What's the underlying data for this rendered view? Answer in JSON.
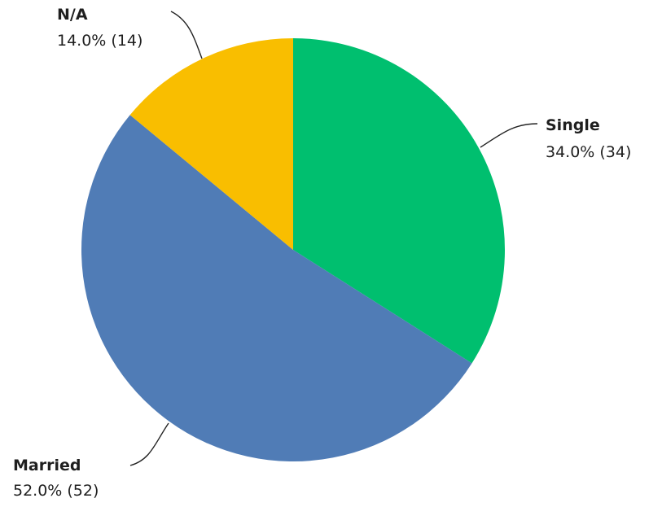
{
  "chart_data": {
    "type": "pie",
    "slices": [
      {
        "label": "Single",
        "percent_text": "34.0% (34)",
        "percent": 34.0,
        "count": 34,
        "color": "#00bf6f"
      },
      {
        "label": "Married",
        "percent_text": "52.0% (52)",
        "percent": 52.0,
        "count": 52,
        "color": "#507cb6"
      },
      {
        "label": "N/A",
        "percent_text": "14.0% (14)",
        "percent": 14.0,
        "count": 14,
        "color": "#f9be00"
      }
    ],
    "start_angle": "12 o'clock",
    "direction": "clockwise",
    "labels_outside": true
  }
}
